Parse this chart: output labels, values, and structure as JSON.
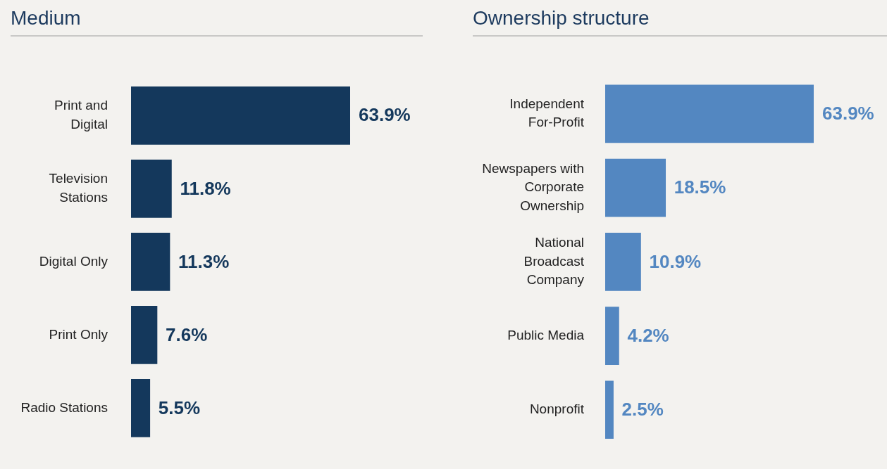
{
  "chart_data": [
    {
      "type": "bar",
      "orientation": "horizontal",
      "title": "Medium",
      "categories": [
        "Print and Digital",
        "Television Stations",
        "Digital Only",
        "Print Only",
        "Radio Stations"
      ],
      "values": [
        63.9,
        11.8,
        11.3,
        7.6,
        5.5
      ],
      "value_labels": [
        "63.9%",
        "11.8%",
        "11.3%",
        "7.6%",
        "5.5%"
      ],
      "color": "#14385c"
    },
    {
      "type": "bar",
      "orientation": "horizontal",
      "title": "Ownership structure",
      "categories": [
        "Independent For-Profit",
        "Newspapers with Corporate Ownership",
        "National Broadcast Company",
        "Public Media",
        "Nonprofit"
      ],
      "values": [
        63.9,
        18.5,
        10.9,
        4.2,
        2.5
      ],
      "value_labels": [
        "63.9%",
        "18.5%",
        "10.9%",
        "4.2%",
        "2.5%"
      ],
      "color": "#5387c1"
    }
  ]
}
